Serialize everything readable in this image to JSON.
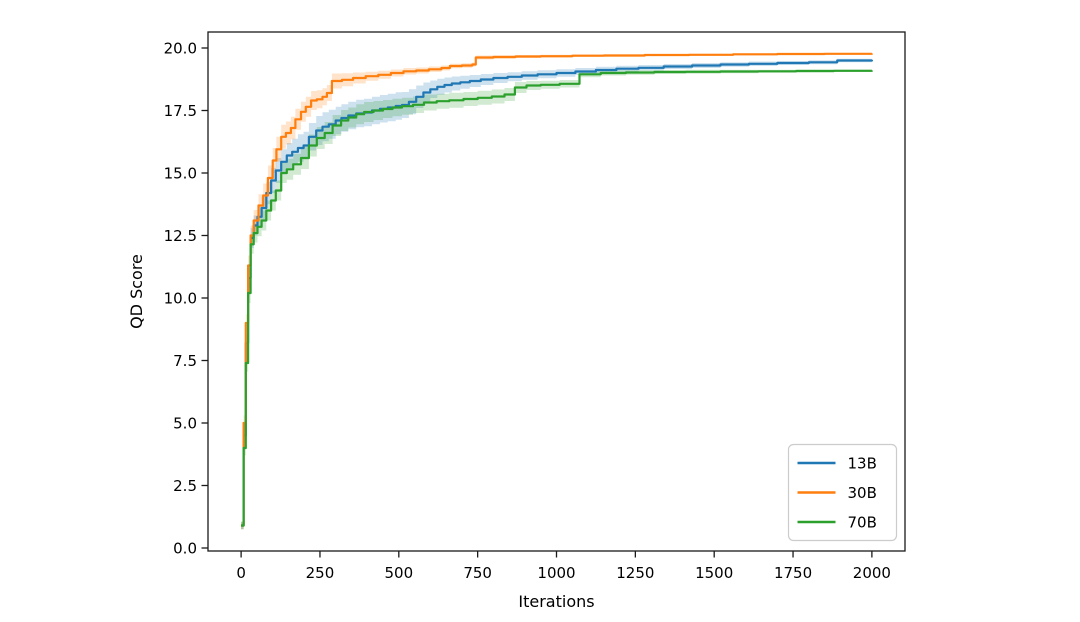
{
  "figure": {
    "background": "#ffffff",
    "text_color": "#000000",
    "spine_color": "#1a1a1a"
  },
  "chart_data": {
    "type": "line",
    "title": "",
    "xlabel": "Iterations",
    "ylabel": "QD Score",
    "grid": false,
    "xlim": [
      -105,
      2105
    ],
    "ylim": [
      -0.12,
      20.64
    ],
    "xticks": {
      "values": [
        0,
        250,
        500,
        750,
        1000,
        1250,
        1500,
        1750,
        2000
      ],
      "labels": [
        "0",
        "250",
        "500",
        "750",
        "1000",
        "1250",
        "1500",
        "1750",
        "2000"
      ]
    },
    "yticks": {
      "values": [
        0,
        2.5,
        5,
        7.5,
        10,
        12.5,
        15,
        17.5,
        20
      ],
      "labels": [
        "0.0",
        "2.5",
        "5.0",
        "7.5",
        "10.0",
        "12.5",
        "15.0",
        "17.5",
        "20.0"
      ]
    },
    "band_opacity": 0.22,
    "legend": {
      "position": "lower right",
      "entries": [
        {
          "name": "13B",
          "color": "#1f77b4"
        },
        {
          "name": "30B",
          "color": "#ff7f0e"
        },
        {
          "name": "70B",
          "color": "#2ca02c"
        }
      ]
    },
    "series": [
      {
        "name": "13B",
        "color": "#1f77b4",
        "points": [
          [
            0,
            0.9,
            0.15
          ],
          [
            8,
            4.5,
            0.3
          ],
          [
            15,
            8.2,
            0.35
          ],
          [
            22,
            10.8,
            0.4
          ],
          [
            30,
            12.4,
            0.4
          ],
          [
            40,
            12.9,
            0.4
          ],
          [
            52,
            13.25,
            0.4
          ],
          [
            65,
            13.6,
            0.45
          ],
          [
            80,
            14.2,
            0.45
          ],
          [
            95,
            14.7,
            0.5
          ],
          [
            110,
            15.1,
            0.5
          ],
          [
            127,
            15.45,
            0.5
          ],
          [
            145,
            15.7,
            0.5
          ],
          [
            162,
            15.85,
            0.52
          ],
          [
            180,
            16.0,
            0.55
          ],
          [
            198,
            16.1,
            0.55
          ],
          [
            215,
            16.45,
            0.55
          ],
          [
            238,
            16.7,
            0.58
          ],
          [
            258,
            16.85,
            0.58
          ],
          [
            278,
            16.95,
            0.58
          ],
          [
            300,
            17.1,
            0.55
          ],
          [
            318,
            17.2,
            0.55
          ],
          [
            340,
            17.3,
            0.55
          ],
          [
            365,
            17.38,
            0.55
          ],
          [
            390,
            17.42,
            0.55
          ],
          [
            415,
            17.5,
            0.55
          ],
          [
            440,
            17.57,
            0.55
          ],
          [
            465,
            17.62,
            0.55
          ],
          [
            490,
            17.68,
            0.55
          ],
          [
            510,
            17.72,
            0.52
          ],
          [
            532,
            17.85,
            0.5
          ],
          [
            555,
            18.05,
            0.45
          ],
          [
            578,
            18.22,
            0.4
          ],
          [
            600,
            18.35,
            0.35
          ],
          [
            622,
            18.45,
            0.32
          ],
          [
            645,
            18.52,
            0.3
          ],
          [
            668,
            18.58,
            0.28
          ],
          [
            695,
            18.63,
            0.26
          ],
          [
            725,
            18.68,
            0.24
          ],
          [
            760,
            18.74,
            0.22
          ],
          [
            800,
            18.8,
            0.2
          ],
          [
            845,
            18.85,
            0.18
          ],
          [
            890,
            18.9,
            0.17
          ],
          [
            940,
            18.95,
            0.16
          ],
          [
            1000,
            19.0,
            0.15
          ],
          [
            1060,
            19.06,
            0.14
          ],
          [
            1125,
            19.12,
            0.13
          ],
          [
            1190,
            19.17,
            0.12
          ],
          [
            1260,
            19.21,
            0.11
          ],
          [
            1340,
            19.26,
            0.1
          ],
          [
            1430,
            19.3,
            0.1
          ],
          [
            1520,
            19.34,
            0.09
          ],
          [
            1610,
            19.37,
            0.09
          ],
          [
            1700,
            19.4,
            0.08
          ],
          [
            1800,
            19.43,
            0.08
          ],
          [
            1890,
            19.5,
            0.07
          ],
          [
            2000,
            19.53,
            0.07
          ]
        ]
      },
      {
        "name": "30B",
        "color": "#ff7f0e",
        "points": [
          [
            0,
            0.9,
            0.15
          ],
          [
            8,
            5.0,
            0.3
          ],
          [
            15,
            9.0,
            0.35
          ],
          [
            22,
            11.3,
            0.4
          ],
          [
            30,
            12.5,
            0.4
          ],
          [
            40,
            13.1,
            0.42
          ],
          [
            55,
            13.7,
            0.45
          ],
          [
            70,
            14.1,
            0.48
          ],
          [
            85,
            14.8,
            0.5
          ],
          [
            100,
            15.5,
            0.5
          ],
          [
            112,
            15.95,
            0.5
          ],
          [
            127,
            16.45,
            0.48
          ],
          [
            142,
            16.6,
            0.46
          ],
          [
            158,
            16.8,
            0.45
          ],
          [
            172,
            17.15,
            0.42
          ],
          [
            190,
            17.45,
            0.4
          ],
          [
            205,
            17.65,
            0.4
          ],
          [
            222,
            17.9,
            0.38
          ],
          [
            240,
            17.95,
            0.36
          ],
          [
            258,
            18.05,
            0.34
          ],
          [
            272,
            18.2,
            0.32
          ],
          [
            288,
            18.68,
            0.3
          ],
          [
            320,
            18.73,
            0.26
          ],
          [
            355,
            18.8,
            0.22
          ],
          [
            395,
            18.87,
            0.18
          ],
          [
            435,
            18.93,
            0.16
          ],
          [
            475,
            19.0,
            0.14
          ],
          [
            515,
            19.07,
            0.13
          ],
          [
            555,
            19.1,
            0.12
          ],
          [
            595,
            19.15,
            0.11
          ],
          [
            635,
            19.2,
            0.1
          ],
          [
            662,
            19.28,
            0.09
          ],
          [
            700,
            19.3,
            0.09
          ],
          [
            733,
            19.34,
            0.08
          ],
          [
            744,
            19.62,
            0.08
          ],
          [
            800,
            19.64,
            0.07
          ],
          [
            870,
            19.66,
            0.06
          ],
          [
            950,
            19.67,
            0.06
          ],
          [
            1050,
            19.69,
            0.05
          ],
          [
            1150,
            19.7,
            0.05
          ],
          [
            1280,
            19.72,
            0.04
          ],
          [
            1420,
            19.73,
            0.04
          ],
          [
            1560,
            19.75,
            0.04
          ],
          [
            1700,
            19.76,
            0.03
          ],
          [
            1850,
            19.77,
            0.03
          ],
          [
            2000,
            19.78,
            0.03
          ]
        ]
      },
      {
        "name": "70B",
        "color": "#2ca02c",
        "points": [
          [
            0,
            0.9,
            0.15
          ],
          [
            8,
            4.0,
            0.3
          ],
          [
            15,
            7.4,
            0.35
          ],
          [
            22,
            10.2,
            0.4
          ],
          [
            30,
            12.15,
            0.38
          ],
          [
            40,
            12.6,
            0.38
          ],
          [
            52,
            12.85,
            0.38
          ],
          [
            65,
            13.1,
            0.4
          ],
          [
            80,
            13.5,
            0.4
          ],
          [
            95,
            13.9,
            0.4
          ],
          [
            110,
            14.3,
            0.4
          ],
          [
            127,
            15.0,
            0.4
          ],
          [
            145,
            15.15,
            0.42
          ],
          [
            165,
            15.35,
            0.42
          ],
          [
            190,
            15.6,
            0.44
          ],
          [
            215,
            16.1,
            0.44
          ],
          [
            240,
            16.4,
            0.44
          ],
          [
            265,
            16.6,
            0.44
          ],
          [
            290,
            16.9,
            0.42
          ],
          [
            317,
            17.1,
            0.42
          ],
          [
            340,
            17.22,
            0.4
          ],
          [
            365,
            17.35,
            0.4
          ],
          [
            390,
            17.44,
            0.4
          ],
          [
            420,
            17.5,
            0.38
          ],
          [
            450,
            17.56,
            0.36
          ],
          [
            480,
            17.62,
            0.35
          ],
          [
            510,
            17.67,
            0.34
          ],
          [
            545,
            17.73,
            0.33
          ],
          [
            580,
            17.82,
            0.32
          ],
          [
            620,
            17.87,
            0.3
          ],
          [
            660,
            17.91,
            0.3
          ],
          [
            705,
            17.96,
            0.28
          ],
          [
            750,
            18.01,
            0.28
          ],
          [
            795,
            18.06,
            0.28
          ],
          [
            835,
            18.14,
            0.26
          ],
          [
            868,
            18.42,
            0.22
          ],
          [
            905,
            18.5,
            0.18
          ],
          [
            950,
            18.53,
            0.16
          ],
          [
            1010,
            18.57,
            0.15
          ],
          [
            1073,
            18.95,
            0.12
          ],
          [
            1140,
            19.0,
            0.1
          ],
          [
            1220,
            19.02,
            0.09
          ],
          [
            1310,
            19.04,
            0.08
          ],
          [
            1410,
            19.05,
            0.08
          ],
          [
            1520,
            19.06,
            0.07
          ],
          [
            1640,
            19.07,
            0.06
          ],
          [
            1760,
            19.08,
            0.06
          ],
          [
            1880,
            19.09,
            0.05
          ],
          [
            2000,
            19.1,
            0.05
          ]
        ]
      }
    ]
  }
}
